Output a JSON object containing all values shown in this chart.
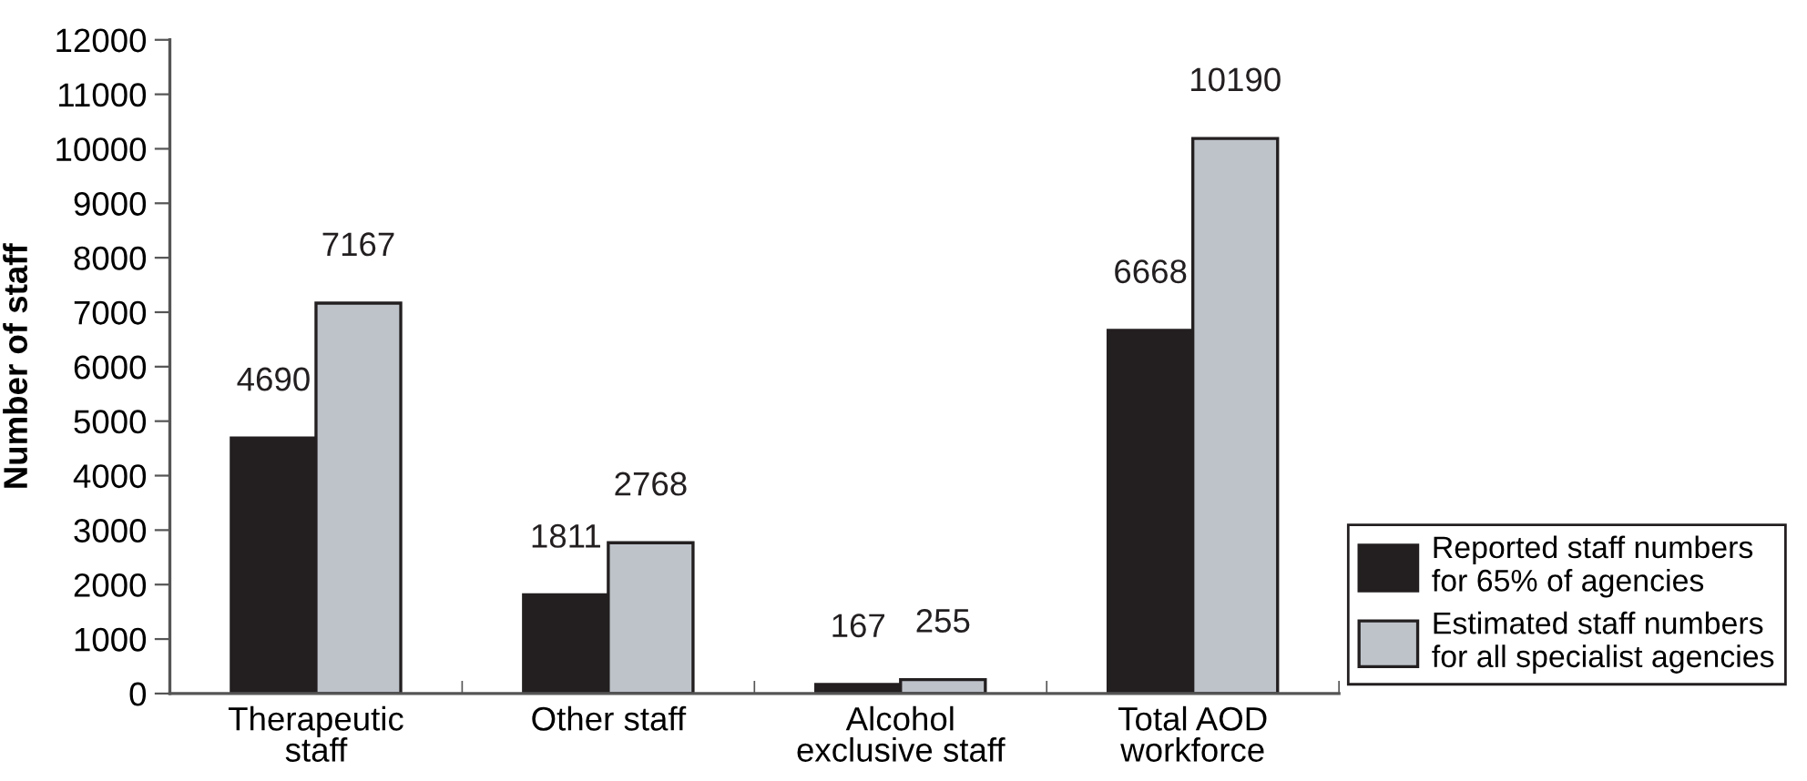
{
  "chart_data": {
    "type": "bar",
    "ylabel": "Number of staff",
    "categories": [
      "Therapeutic\nstaff",
      "Other staff",
      "Alcohol\nexclusive staff",
      "Total AOD\nworkforce"
    ],
    "series": [
      {
        "name": "Reported staff numbers\nfor 65% of agencies",
        "color": "#231f20",
        "values": [
          4690,
          1811,
          167,
          6668
        ]
      },
      {
        "name": "Estimated staff numbers\nfor all specialist agencies",
        "color": "#bec3ca",
        "values": [
          7167,
          2768,
          255,
          10190
        ]
      }
    ],
    "ylim": [
      0,
      12000
    ],
    "yticks": [
      0,
      1000,
      2000,
      3000,
      4000,
      5000,
      6000,
      7000,
      8000,
      9000,
      10000,
      11000,
      12000
    ],
    "data_labels": true,
    "grid": false,
    "legend": "bottom right"
  }
}
